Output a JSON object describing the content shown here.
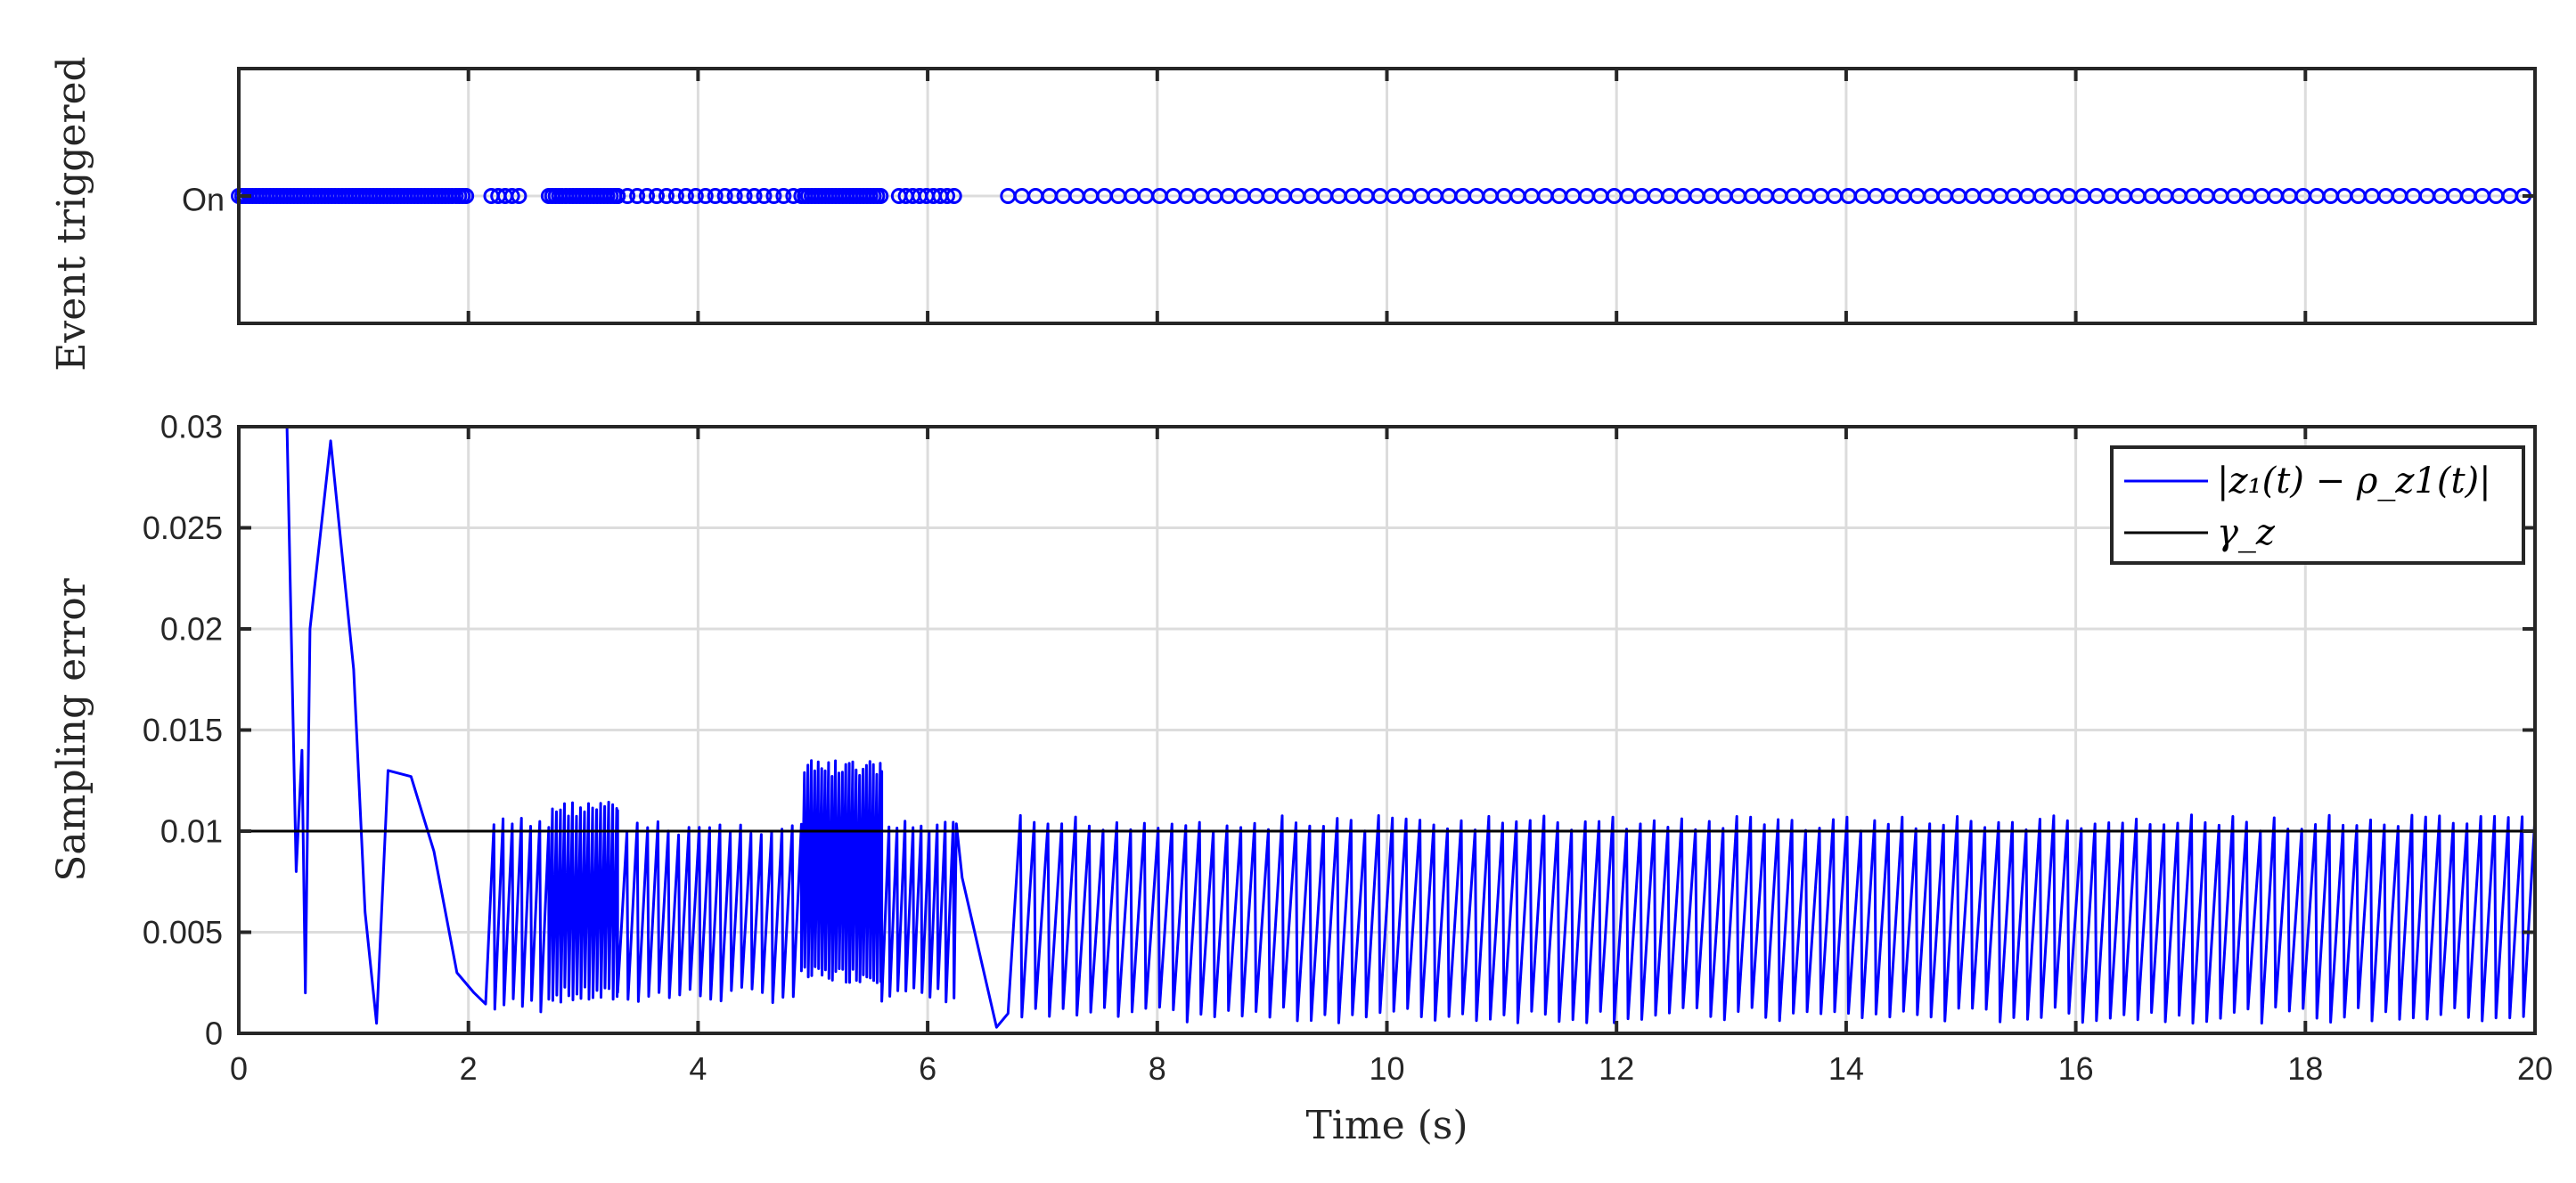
{
  "colors": {
    "series_error": "#0000ff",
    "series_threshold": "#000000",
    "grid": "#dcdcdc",
    "axes": "#262626",
    "events": "#0000ff"
  },
  "chart_data": [
    {
      "type": "scatter",
      "ylabel": "Event triggered",
      "y_tick_labels": [
        "On"
      ],
      "xlim": [
        0,
        20
      ],
      "x_ticks": [
        0,
        2,
        4,
        6,
        8,
        10,
        12,
        14,
        16,
        18,
        20
      ],
      "grid": true,
      "marker": "circle",
      "series": [
        {
          "event_segments": [
            {
              "from": 0.0,
              "to": 2.0,
              "spacing": 0.03
            },
            {
              "from": 2.2,
              "to": 2.45,
              "spacing": 0.06
            },
            {
              "from": 2.7,
              "to": 3.3,
              "spacing": 0.03
            },
            {
              "from": 3.3,
              "to": 4.9,
              "spacing": 0.085
            },
            {
              "from": 4.9,
              "to": 5.6,
              "spacing": 0.03
            },
            {
              "from": 5.75,
              "to": 6.25,
              "spacing": 0.06
            },
            {
              "from": 6.7,
              "to": 20.0,
              "spacing": 0.12
            }
          ]
        }
      ]
    },
    {
      "type": "line",
      "xlabel": "Time (s)",
      "ylabel": "Sampling error",
      "xlim": [
        0,
        20
      ],
      "ylim": [
        0,
        0.03
      ],
      "x_ticks": [
        0,
        2,
        4,
        6,
        8,
        10,
        12,
        14,
        16,
        18,
        20
      ],
      "x_tick_labels": [
        "0",
        "2",
        "4",
        "6",
        "8",
        "10",
        "12",
        "14",
        "16",
        "18",
        "20"
      ],
      "y_ticks": [
        0,
        0.005,
        0.01,
        0.015,
        0.02,
        0.025,
        0.03
      ],
      "y_tick_labels": [
        "0",
        "0.005",
        "0.01",
        "0.015",
        "0.02",
        "0.025",
        "0.03"
      ],
      "grid": true,
      "legend": {
        "position": "top-right",
        "entries": [
          "|z₁(t) − ρ_z1(t)|",
          "γ_z"
        ]
      },
      "series": [
        {
          "name": "|z₁(t) − ρ_z1(t)|",
          "description_points": [
            [
              0.42,
              0.03
            ],
            [
              0.5,
              0.008
            ],
            [
              0.55,
              0.014
            ],
            [
              0.58,
              0.002
            ],
            [
              0.62,
              0.02
            ],
            [
              0.8,
              0.0293
            ],
            [
              1.0,
              0.018
            ],
            [
              1.1,
              0.006
            ],
            [
              1.2,
              0.0005
            ],
            [
              1.3,
              0.013
            ],
            [
              1.5,
              0.0127
            ],
            [
              1.7,
              0.009
            ],
            [
              1.9,
              0.003
            ],
            [
              2.05,
              0.002
            ],
            [
              2.25,
              0.0005
            ],
            [
              6.3,
              0.0077
            ],
            [
              6.6,
              0.0003
            ]
          ],
          "sawtooth_segments": [
            {
              "from": 2.15,
              "to": 2.7,
              "period": 0.08,
              "min": 0.001,
              "max": 0.0107
            },
            {
              "from": 2.7,
              "to": 3.3,
              "period": 0.035,
              "min": 0.0015,
              "max": 0.0115
            },
            {
              "from": 3.3,
              "to": 4.9,
              "period": 0.09,
              "min": 0.0015,
              "max": 0.0105
            },
            {
              "from": 4.9,
              "to": 5.6,
              "period": 0.03,
              "min": 0.0025,
              "max": 0.0135
            },
            {
              "from": 5.6,
              "to": 6.25,
              "period": 0.07,
              "min": 0.0015,
              "max": 0.0105
            },
            {
              "from": 6.7,
              "to": 20.0,
              "period": 0.12,
              "min": 0.0005,
              "max": 0.0108
            }
          ]
        },
        {
          "name": "γ_z",
          "constant": 0.01
        }
      ]
    }
  ]
}
